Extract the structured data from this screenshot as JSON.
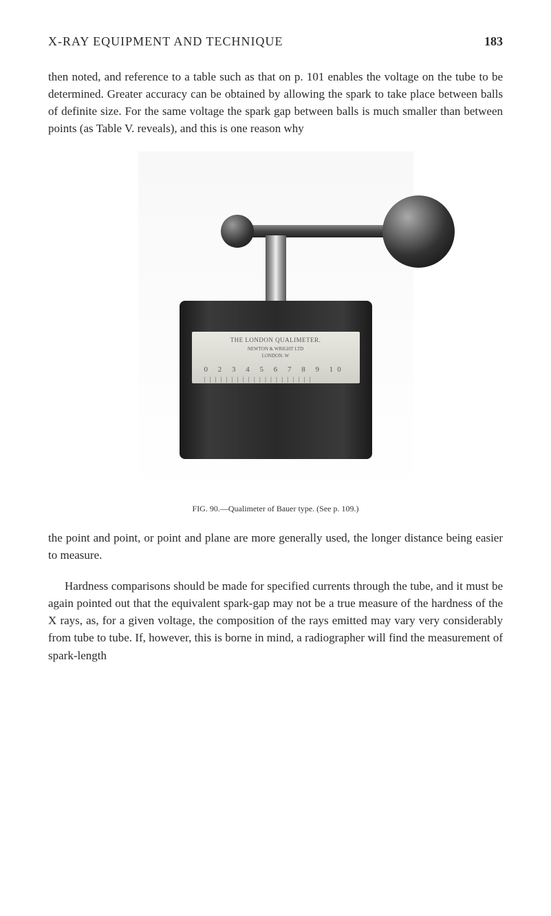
{
  "header": {
    "title": "X-RAY EQUIPMENT AND TECHNIQUE",
    "page_number": "183"
  },
  "paragraph1": "then noted, and reference to a table such as that on p. 101 enables the voltage on the tube to be determined. Greater accuracy can be obtained by allowing the spark to take place between balls of definite size. For the same voltage the spark gap between balls is much smaller than between points (as Table V. reveals), and this is one reason why",
  "figure": {
    "device_label_main": "THE LONDON QUALIMETER.",
    "device_label_sub": "NEWTON & WRIGHT LTD",
    "device_label_location": "LONDON. W",
    "scale_numbers": "0 2 3 4 5 6 7 8 9 10",
    "scale_marks": "| | | | | | | | | | | | | | | | | | | |",
    "caption_prefix": "FIG. 90.",
    "caption_text": "—Qualimeter of Bauer type. (See p. 109.)"
  },
  "paragraph2": "the point and point, or point and plane are more generally used, the longer distance being easier to measure.",
  "paragraph3": "Hardness comparisons should be made for specified currents through the tube, and it must be again pointed out that the equivalent spark-gap may not be a true measure of the hardness of the X rays, as, for a given voltage, the composition of the rays emitted may vary very considerably from tube to tube. If, however, this is borne in mind, a radiographer will find the measurement of spark-length",
  "colors": {
    "background": "#ffffff",
    "text": "#2a2a2a",
    "figure_bg": "#f8f8f8"
  },
  "typography": {
    "body_fontsize": 17,
    "header_fontsize": 18,
    "caption_fontsize": 12,
    "line_height": 1.48
  }
}
